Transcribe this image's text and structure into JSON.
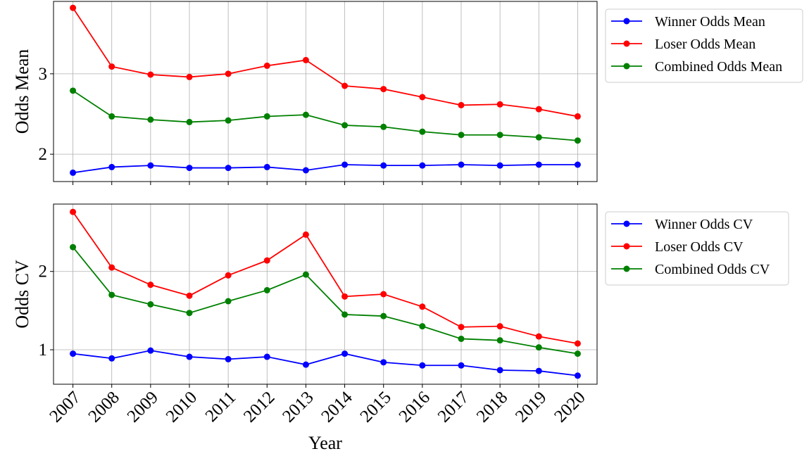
{
  "chart_data": [
    {
      "type": "line",
      "ylabel": "Odds Mean",
      "xlabel": "",
      "x": [
        2007,
        2008,
        2009,
        2010,
        2011,
        2012,
        2013,
        2014,
        2015,
        2016,
        2017,
        2018,
        2019,
        2020
      ],
      "ylim": [
        1.66,
        3.9
      ],
      "yticks": [
        2,
        3
      ],
      "grid": true,
      "legend_position": "outside-right",
      "series": [
        {
          "name": "Winner Odds Mean",
          "color": "#0000ff",
          "values": [
            1.77,
            1.84,
            1.86,
            1.83,
            1.83,
            1.84,
            1.8,
            1.87,
            1.86,
            1.86,
            1.87,
            1.86,
            1.87,
            1.87
          ]
        },
        {
          "name": "Loser Odds Mean",
          "color": "#ff0000",
          "values": [
            3.82,
            3.09,
            2.99,
            2.96,
            3.0,
            3.1,
            3.17,
            2.85,
            2.81,
            2.71,
            2.61,
            2.62,
            2.56,
            2.47
          ]
        },
        {
          "name": "Combined Odds Mean",
          "color": "#008000",
          "values": [
            2.79,
            2.47,
            2.43,
            2.4,
            2.42,
            2.47,
            2.49,
            2.36,
            2.34,
            2.28,
            2.24,
            2.24,
            2.21,
            2.17
          ]
        }
      ]
    },
    {
      "type": "line",
      "ylabel": "Odds CV",
      "xlabel": "Year",
      "x": [
        2007,
        2008,
        2009,
        2010,
        2011,
        2012,
        2013,
        2014,
        2015,
        2016,
        2017,
        2018,
        2019,
        2020
      ],
      "ylim": [
        0.56,
        2.86
      ],
      "yticks": [
        1,
        2
      ],
      "grid": true,
      "legend_position": "outside-right",
      "series": [
        {
          "name": "Winner Odds CV",
          "color": "#0000ff",
          "values": [
            0.95,
            0.89,
            0.99,
            0.91,
            0.88,
            0.91,
            0.81,
            0.95,
            0.84,
            0.8,
            0.8,
            0.74,
            0.73,
            0.67
          ]
        },
        {
          "name": "Loser Odds CV",
          "color": "#ff0000",
          "values": [
            2.76,
            2.05,
            1.83,
            1.69,
            1.95,
            2.14,
            2.47,
            1.68,
            1.71,
            1.55,
            1.29,
            1.3,
            1.17,
            1.08
          ]
        },
        {
          "name": "Combined Odds CV",
          "color": "#008000",
          "values": [
            2.31,
            1.7,
            1.58,
            1.47,
            1.62,
            1.76,
            1.96,
            1.45,
            1.43,
            1.3,
            1.14,
            1.12,
            1.03,
            0.95
          ]
        }
      ]
    }
  ]
}
